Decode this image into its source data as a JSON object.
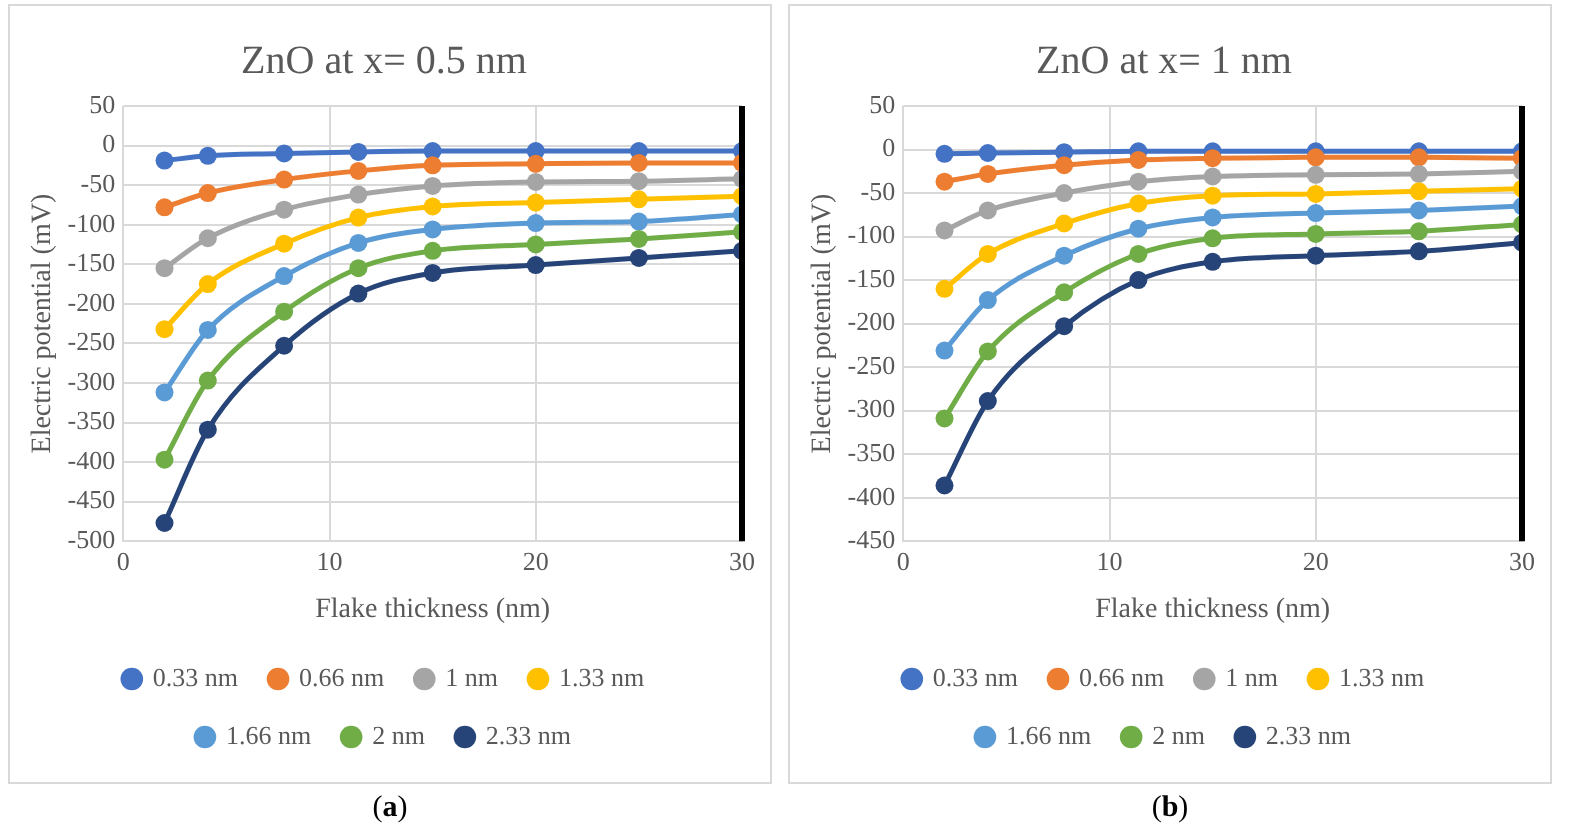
{
  "chart_data": [
    {
      "type": "line",
      "title": "ZnO at x= 0.5 nm",
      "xlabel": "Flake thickness (nm)",
      "ylabel": "Electric potential (mV)",
      "annotations": [
        "(a)"
      ],
      "x": [
        2,
        4.1,
        7.8,
        11.4,
        15,
        20,
        25,
        30
      ],
      "xlim": [
        0,
        30
      ],
      "xticks": [
        0,
        10,
        20,
        30
      ],
      "ylim": [
        -500,
        50
      ],
      "yticks": [
        -500,
        -450,
        -400,
        -350,
        -300,
        -250,
        -200,
        -150,
        -100,
        -50,
        0,
        50
      ],
      "grid": true,
      "legend": "bottom",
      "marker": "circle",
      "line_style": "solid",
      "ref_lines": [
        {
          "axis": "x",
          "value": 30,
          "color": "#000000"
        }
      ],
      "series": [
        {
          "name": "0.33 nm",
          "color": "#4472c4",
          "values": [
            -19,
            -13,
            -10,
            -8,
            -7,
            -7,
            -7,
            -7
          ]
        },
        {
          "name": "0.66 nm",
          "color": "#ed7d31",
          "values": [
            -78,
            -60,
            -43,
            -32,
            -25,
            -23,
            -22,
            -22
          ]
        },
        {
          "name": "1 nm",
          "color": "#a5a5a5",
          "values": [
            -155,
            -117,
            -81,
            -62,
            -51,
            -46,
            -45,
            -42
          ]
        },
        {
          "name": "1.33 nm",
          "color": "#ffc000",
          "values": [
            -232,
            -175,
            -124,
            -91,
            -77,
            -72,
            -68,
            -64
          ]
        },
        {
          "name": "1.66 nm",
          "color": "#5b9bd5",
          "values": [
            -312,
            -233,
            -165,
            -123,
            -106,
            -98,
            -96,
            -87
          ]
        },
        {
          "name": "2 nm",
          "color": "#70ad47",
          "values": [
            -397,
            -297,
            -210,
            -155,
            -133,
            -125,
            -118,
            -109
          ]
        },
        {
          "name": "2.33 nm",
          "color": "#264478",
          "values": [
            -477,
            -359,
            -253,
            -187,
            -161,
            -151,
            -142,
            -133
          ]
        }
      ]
    },
    {
      "type": "line",
      "title": "ZnO at x= 1 nm",
      "xlabel": "Flake thickness (nm)",
      "ylabel": "Electric potential (mV)",
      "annotations": [
        "(b)"
      ],
      "x": [
        2,
        4.1,
        7.8,
        11.4,
        15,
        20,
        25,
        30
      ],
      "xlim": [
        0,
        30
      ],
      "xticks": [
        0,
        10,
        20,
        30
      ],
      "ylim": [
        -450,
        50
      ],
      "yticks": [
        -450,
        -400,
        -350,
        -300,
        -250,
        -200,
        -150,
        -100,
        -50,
        0,
        50
      ],
      "grid": true,
      "legend": "bottom",
      "marker": "circle",
      "line_style": "solid",
      "ref_lines": [
        {
          "axis": "x",
          "value": 30,
          "color": "#000000"
        }
      ],
      "series": [
        {
          "name": "0.33 nm",
          "color": "#4472c4",
          "values": [
            -5,
            -4,
            -3,
            -2,
            -2,
            -2,
            -2,
            -2
          ]
        },
        {
          "name": "0.66 nm",
          "color": "#ed7d31",
          "values": [
            -37,
            -28,
            -18,
            -12,
            -10,
            -9,
            -9,
            -10
          ]
        },
        {
          "name": "1 nm",
          "color": "#a5a5a5",
          "values": [
            -93,
            -70,
            -50,
            -37,
            -31,
            -29,
            -28,
            -25
          ]
        },
        {
          "name": "1.33 nm",
          "color": "#ffc000",
          "values": [
            -160,
            -120,
            -85,
            -62,
            -53,
            -51,
            -48,
            -45
          ]
        },
        {
          "name": "1.66 nm",
          "color": "#5b9bd5",
          "values": [
            -231,
            -173,
            -122,
            -91,
            -78,
            -73,
            -70,
            -65
          ]
        },
        {
          "name": "2 nm",
          "color": "#70ad47",
          "values": [
            -309,
            -232,
            -164,
            -120,
            -102,
            -97,
            -94,
            -86
          ]
        },
        {
          "name": "2.33 nm",
          "color": "#264478",
          "values": [
            -386,
            -289,
            -203,
            -150,
            -129,
            -122,
            -117,
            -107
          ]
        }
      ]
    }
  ]
}
